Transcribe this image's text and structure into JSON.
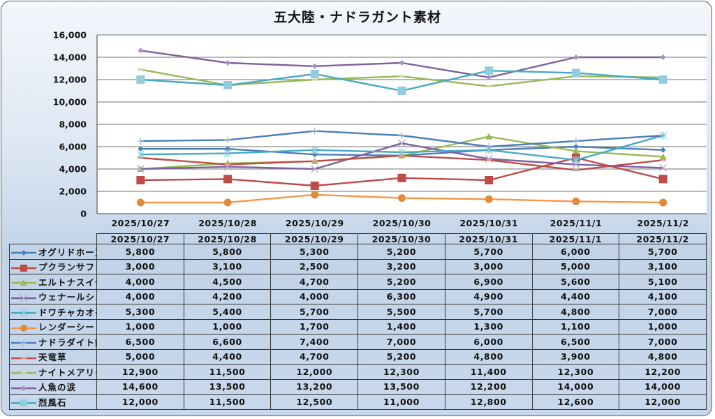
{
  "chart_data": {
    "type": "line",
    "title": "五大陸・ナドラガント素材",
    "xlabel": "",
    "ylabel": "",
    "ylim": [
      0,
      16000
    ],
    "yticks": [
      "0",
      "2,000",
      "4,000",
      "6,000",
      "8,000",
      "10,000",
      "12,000",
      "14,000",
      "16,000"
    ],
    "grid": true,
    "legend": "data-table",
    "categories": [
      "2025/10/27",
      "2025/10/28",
      "2025/10/29",
      "2025/10/30",
      "2025/10/31",
      "2025/11/1",
      "2025/11/2"
    ],
    "series": [
      {
        "name": "オグリドホーン",
        "color": "#4a7ebb",
        "marker": "diamond",
        "values": [
          5800,
          5800,
          5300,
          5200,
          5700,
          6000,
          5700
        ],
        "labels": [
          "5,800",
          "5,800",
          "5,300",
          "5,200",
          "5,700",
          "6,000",
          "5,700"
        ]
      },
      {
        "name": "プクランサフラン",
        "color": "#be4b48",
        "marker": "square",
        "values": [
          3000,
          3100,
          2500,
          3200,
          3000,
          5000,
          3100
        ],
        "labels": [
          "3,000",
          "3,100",
          "2,500",
          "3,200",
          "3,000",
          "5,000",
          "3,100"
        ]
      },
      {
        "name": "エルトナスイセン",
        "color": "#98b954",
        "marker": "triangle",
        "values": [
          4000,
          4500,
          4700,
          5200,
          6900,
          5600,
          5100
        ],
        "labels": [
          "4,000",
          "4,500",
          "4,700",
          "5,200",
          "6,900",
          "5,600",
          "5,100"
        ]
      },
      {
        "name": "ウェナールシェル",
        "color": "#7d60a0",
        "marker": "x",
        "values": [
          4000,
          4200,
          4000,
          6300,
          4900,
          4400,
          4100
        ],
        "labels": [
          "4,000",
          "4,200",
          "4,000",
          "6,300",
          "4,900",
          "4,400",
          "4,100"
        ]
      },
      {
        "name": "ドワチャカオイル",
        "color": "#46aac5",
        "marker": "star",
        "values": [
          5300,
          5400,
          5700,
          5500,
          5700,
          4800,
          7000
        ],
        "labels": [
          "5,300",
          "5,400",
          "5,700",
          "5,500",
          "5,700",
          "4,800",
          "7,000"
        ]
      },
      {
        "name": "レンダーシード",
        "color": "#f79646",
        "marker": "circle",
        "values": [
          1000,
          1000,
          1700,
          1400,
          1300,
          1100,
          1000
        ],
        "labels": [
          "1,000",
          "1,000",
          "1,700",
          "1,400",
          "1,300",
          "1,100",
          "1,000"
        ]
      },
      {
        "name": "ナドラダイト鉱石",
        "color": "#4a7ebb",
        "marker": "plus",
        "values": [
          6500,
          6600,
          7400,
          7000,
          6000,
          6500,
          7000
        ],
        "labels": [
          "6,500",
          "6,600",
          "7,400",
          "7,000",
          "6,000",
          "6,500",
          "7,000"
        ]
      },
      {
        "name": "天竜草",
        "color": "#be4b48",
        "marker": "dash",
        "values": [
          5000,
          4400,
          4700,
          5200,
          4800,
          3900,
          4800
        ],
        "labels": [
          "5,000",
          "4,400",
          "4,700",
          "5,200",
          "4,800",
          "3,900",
          "4,800"
        ]
      },
      {
        "name": "ナイトメアリーフ",
        "color": "#98b954",
        "marker": "dash",
        "values": [
          12900,
          11500,
          12000,
          12300,
          11400,
          12300,
          12200
        ],
        "labels": [
          "12,900",
          "11,500",
          "12,000",
          "12,300",
          "11,400",
          "12,300",
          "12,200"
        ]
      },
      {
        "name": "人魚の涙",
        "color": "#7d60a0",
        "marker": "diamond",
        "values": [
          14600,
          13500,
          13200,
          13500,
          12200,
          14000,
          14000
        ],
        "labels": [
          "14,600",
          "13,500",
          "13,200",
          "13,500",
          "12,200",
          "14,000",
          "14,000"
        ]
      },
      {
        "name": "烈風石",
        "color": "#46aac5",
        "marker": "square",
        "values": [
          12000,
          11500,
          12500,
          11000,
          12800,
          12600,
          12000
        ],
        "labels": [
          "12,000",
          "11,500",
          "12,500",
          "11,000",
          "12,800",
          "12,600",
          "12,000"
        ]
      }
    ]
  }
}
